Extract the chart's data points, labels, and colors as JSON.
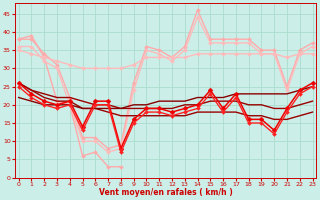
{
  "xlabel": "Vent moyen/en rafales ( km/h )",
  "background_color": "#cceee8",
  "grid_color": "#aaddcc",
  "x": [
    0,
    1,
    2,
    3,
    4,
    5,
    6,
    7,
    8,
    9,
    10,
    11,
    12,
    13,
    14,
    15,
    16,
    17,
    18,
    19,
    20,
    21,
    22,
    23
  ],
  "ylim": [
    0,
    48
  ],
  "xlim": [
    -0.3,
    23.3
  ],
  "yticks": [
    0,
    5,
    10,
    15,
    20,
    25,
    30,
    35,
    40,
    45
  ],
  "xticks": [
    0,
    1,
    2,
    3,
    4,
    5,
    6,
    7,
    8,
    9,
    10,
    11,
    12,
    13,
    14,
    15,
    16,
    17,
    18,
    19,
    20,
    21,
    22,
    23
  ],
  "lines": [
    {
      "y": [
        38,
        39,
        33,
        21,
        20,
        6,
        7,
        3,
        3,
        null,
        null,
        null,
        null,
        null,
        null,
        null,
        null,
        null,
        null,
        null,
        null,
        null,
        null,
        null
      ],
      "color": "#ffaaaa",
      "lw": 1.0,
      "marker": "D",
      "ms": 2.0,
      "zorder": 2
    },
    {
      "y": [
        38,
        38,
        34,
        31,
        22,
        11,
        11,
        8,
        9,
        26,
        36,
        35,
        33,
        36,
        46,
        38,
        38,
        38,
        38,
        35,
        35,
        25,
        35,
        37
      ],
      "color": "#ffaaaa",
      "lw": 1.0,
      "marker": "D",
      "ms": 2.0,
      "zorder": 2
    },
    {
      "y": [
        36,
        36,
        32,
        30,
        20,
        10,
        10,
        7,
        8,
        24,
        35,
        34,
        32,
        35,
        44,
        37,
        37,
        37,
        37,
        34,
        34,
        24,
        34,
        36
      ],
      "color": "#ffbbbb",
      "lw": 1.0,
      "marker": "D",
      "ms": 2.0,
      "zorder": 2
    },
    {
      "y": [
        35,
        34,
        33,
        32,
        31,
        30,
        30,
        30,
        30,
        31,
        33,
        33,
        33,
        33,
        34,
        34,
        34,
        34,
        34,
        34,
        34,
        33,
        34,
        34
      ],
      "color": "#ffbbbb",
      "lw": 1.0,
      "marker": "D",
      "ms": 2.0,
      "zorder": 2
    },
    {
      "y": [
        26,
        23,
        21,
        20,
        21,
        14,
        21,
        21,
        8,
        16,
        19,
        19,
        18,
        19,
        20,
        24,
        19,
        23,
        16,
        16,
        13,
        19,
        24,
        26
      ],
      "color": "#ee0000",
      "lw": 1.1,
      "marker": "D",
      "ms": 2.5,
      "zorder": 4
    },
    {
      "y": [
        26,
        24,
        22,
        21,
        21,
        19,
        19,
        18,
        17,
        17,
        17,
        17,
        17,
        17,
        18,
        18,
        18,
        18,
        17,
        17,
        16,
        16,
        17,
        18
      ],
      "color": "#990000",
      "lw": 1.0,
      "marker": null,
      "ms": 0,
      "zorder": 3
    },
    {
      "y": [
        26,
        24,
        23,
        22,
        22,
        21,
        20,
        20,
        19,
        19,
        19,
        19,
        19,
        20,
        20,
        21,
        21,
        21,
        20,
        20,
        19,
        19,
        20,
        21
      ],
      "color": "#990000",
      "lw": 1.0,
      "marker": null,
      "ms": 0,
      "zorder": 3
    },
    {
      "y": [
        22,
        21,
        20,
        20,
        20,
        19,
        19,
        19,
        19,
        20,
        20,
        21,
        21,
        21,
        22,
        22,
        22,
        23,
        23,
        23,
        23,
        23,
        24,
        25
      ],
      "color": "#880000",
      "lw": 1.0,
      "marker": null,
      "ms": 0,
      "zorder": 3
    },
    {
      "y": [
        25,
        22,
        20,
        19,
        20,
        13,
        20,
        20,
        7,
        15,
        18,
        18,
        17,
        18,
        19,
        23,
        18,
        22,
        15,
        15,
        12,
        18,
        23,
        25
      ],
      "color": "#ff2222",
      "lw": 1.0,
      "marker": "D",
      "ms": 2.0,
      "zorder": 4
    }
  ]
}
